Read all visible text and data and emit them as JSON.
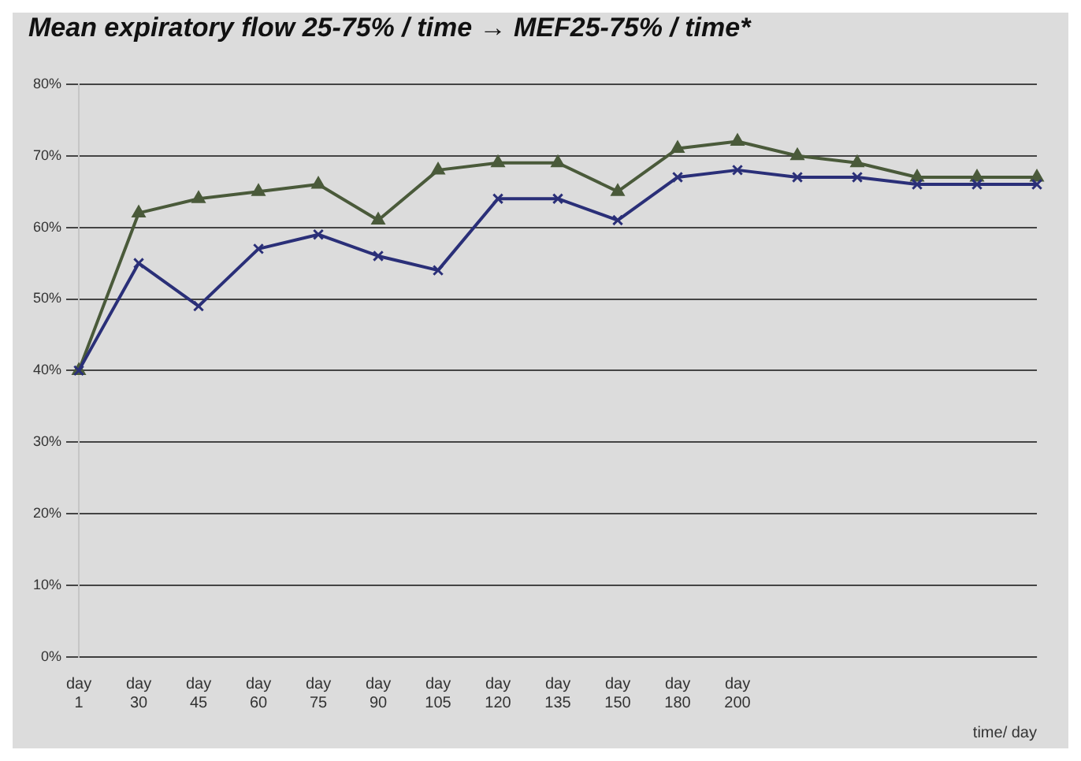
{
  "chart_data": {
    "type": "line",
    "title": "Mean expiratory flow 25-75% / time → MEF25-75% / time*",
    "xlabel": "time/ day",
    "categories": [
      "day 1",
      "day 30",
      "day 45",
      "day 60",
      "day 75",
      "day 90",
      "day 105",
      "day 120",
      "day 135",
      "day 150",
      "day 180",
      "day 200",
      null,
      null,
      null,
      null,
      null
    ],
    "series": [
      {
        "color": "#4a5a3a",
        "marker": "triangle",
        "values": [
          40,
          62,
          64,
          65,
          66,
          61,
          68,
          69,
          69,
          65,
          71,
          72,
          70,
          69,
          67,
          67,
          67
        ]
      },
      {
        "color": "#2a2f78",
        "marker": "cross",
        "values": [
          40,
          55,
          49,
          57,
          59,
          56,
          54,
          64,
          64,
          61,
          67,
          68,
          67,
          67,
          66,
          66,
          66
        ]
      }
    ],
    "ylim": [
      0,
      80
    ],
    "yticks": [
      {
        "value": 0,
        "label": "0%"
      },
      {
        "value": 10,
        "label": "10%"
      },
      {
        "value": 20,
        "label": "20%"
      },
      {
        "value": 30,
        "label": "30%"
      },
      {
        "value": 40,
        "label": "40%"
      },
      {
        "value": 50,
        "label": "50%"
      },
      {
        "value": 60,
        "label": "60%"
      },
      {
        "value": 70,
        "label": "70%"
      },
      {
        "value": 80,
        "label": "80%"
      }
    ],
    "grid": "y",
    "legend": false
  }
}
